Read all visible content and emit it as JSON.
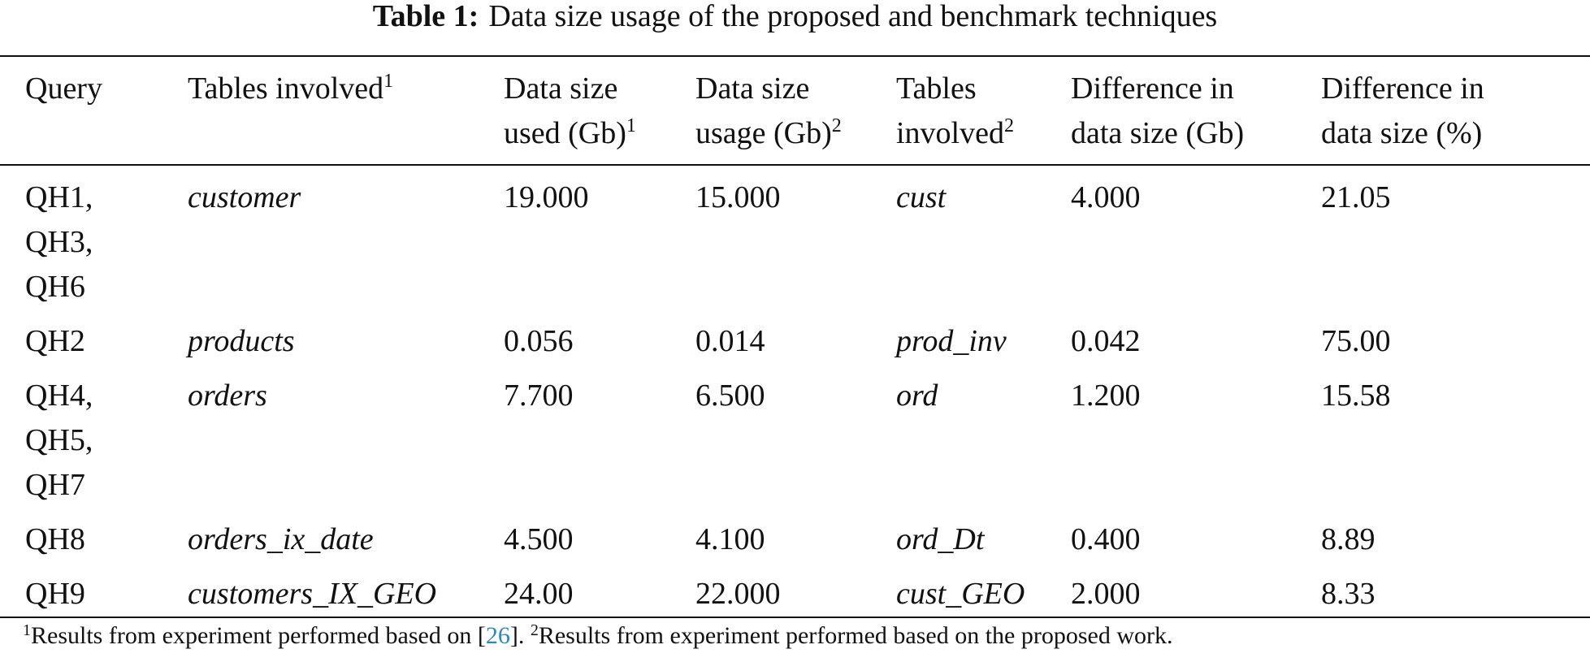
{
  "title": {
    "label": "Table 1:",
    "text": "Data size usage of the proposed and benchmark techniques"
  },
  "table": {
    "header": [
      {
        "lines": [
          "Query"
        ]
      },
      {
        "lines": [
          "Tables involved"
        ],
        "sup": "1"
      },
      {
        "lines": [
          "Data size",
          "used (Gb)"
        ],
        "sup": "1"
      },
      {
        "lines": [
          "Data size",
          "usage (Gb)"
        ],
        "sup": "2"
      },
      {
        "lines": [
          "Tables",
          "involved"
        ],
        "sup": "2"
      },
      {
        "lines": [
          "Difference in",
          "data size (Gb)"
        ]
      },
      {
        "lines": [
          "Difference in",
          "data size (%)"
        ]
      }
    ],
    "rows": [
      [
        [
          "QH1,",
          "QH3,",
          "QH6"
        ],
        "customer",
        "19.000",
        "15.000",
        "cust",
        "4.000",
        "21.05"
      ],
      [
        [
          "QH2"
        ],
        "products",
        "0.056",
        "0.014",
        "prod_inv",
        "0.042",
        "75.00"
      ],
      [
        [
          "QH4,",
          "QH5,",
          "QH7"
        ],
        "orders",
        "7.700",
        "6.500",
        "ord",
        "1.200",
        "15.58"
      ],
      [
        [
          "QH8"
        ],
        "orders_ix_date",
        "4.500",
        "4.100",
        "ord_Dt",
        "0.400",
        "8.89"
      ],
      [
        [
          "QH9"
        ],
        "customers_IX_GEO",
        "24.00",
        "22.000",
        "cust_GEO",
        "2.000",
        "8.33"
      ]
    ]
  },
  "footnote": {
    "sup1": "1",
    "text1": "Results from experiment performed based on [",
    "ref": "26",
    "text2": "]. ",
    "sup2": "2",
    "text3": "Results from experiment performed based on the proposed work."
  }
}
